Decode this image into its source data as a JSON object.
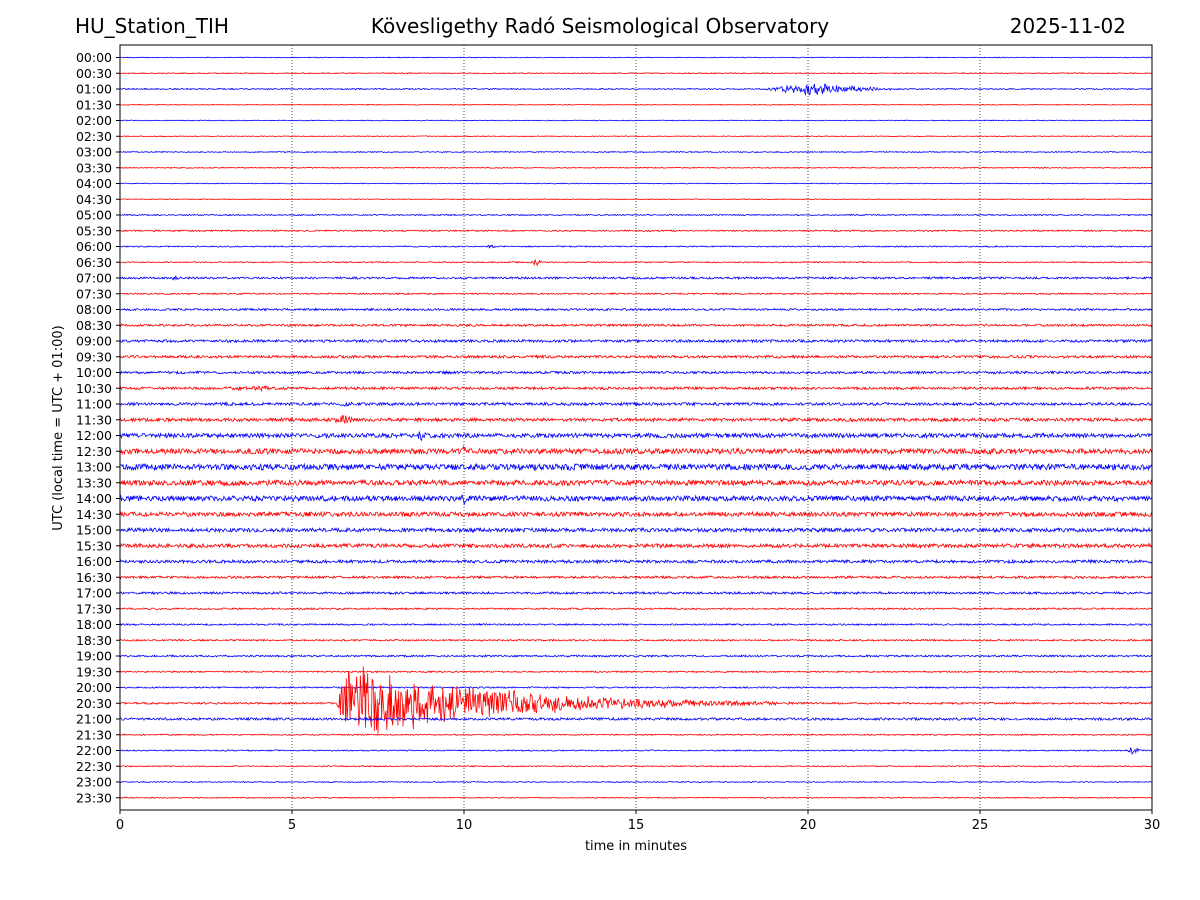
{
  "header": {
    "station": "HU_Station_TIH",
    "observatory": "Kövesligethy Radó Seismological Observatory",
    "date": "2025-11-02"
  },
  "chart_data": {
    "type": "line",
    "subtype": "helicorder",
    "title": "Kövesligethy Radó Seismological Observatory",
    "xlabel": "time in minutes",
    "ylabel": "UTC (local time = UTC + 01:00)",
    "xlim": [
      0,
      30
    ],
    "x_ticks": [
      "0",
      "5",
      "10",
      "15",
      "20",
      "25",
      "30"
    ],
    "x_grid": "dotted vertical at 5, 10, 15, 20, 25",
    "colors": {
      "even_rows": "#0000ff",
      "odd_rows": "#ff0000"
    },
    "row_labels": [
      "00:00",
      "00:30",
      "01:00",
      "01:30",
      "02:00",
      "02:30",
      "03:00",
      "03:30",
      "04:00",
      "04:30",
      "05:00",
      "05:30",
      "06:00",
      "06:30",
      "07:00",
      "07:30",
      "08:00",
      "08:30",
      "09:00",
      "09:30",
      "10:00",
      "10:30",
      "11:00",
      "11:30",
      "12:00",
      "12:30",
      "13:00",
      "13:30",
      "14:00",
      "14:30",
      "15:00",
      "15:30",
      "16:00",
      "16:30",
      "17:00",
      "17:30",
      "18:00",
      "18:30",
      "19:00",
      "19:30",
      "20:00",
      "20:30",
      "21:00",
      "21:30",
      "22:00",
      "22:30",
      "23:00",
      "23:30"
    ],
    "noise_amplitude": [
      0.4,
      0.5,
      0.6,
      0.4,
      0.4,
      0.4,
      0.5,
      0.5,
      0.4,
      0.4,
      0.6,
      0.7,
      0.6,
      0.6,
      1.0,
      0.7,
      1.0,
      1.1,
      1.3,
      1.3,
      1.2,
      1.3,
      1.4,
      1.6,
      2.2,
      2.6,
      3.0,
      2.6,
      2.6,
      2.2,
      1.9,
      1.9,
      1.5,
      1.2,
      1.1,
      0.8,
      0.8,
      0.8,
      0.9,
      0.7,
      0.7,
      0.9,
      1.2,
      0.6,
      0.6,
      0.6,
      0.5,
      0.5
    ],
    "events": [
      {
        "row": "01:00",
        "start_min": 18.5,
        "end_min": 24.0,
        "peak_min": 20.3,
        "amplitude": 8
      },
      {
        "row": "06:00",
        "start_min": 10.6,
        "end_min": 11.1,
        "peak_min": 10.8,
        "amplitude": 3
      },
      {
        "row": "06:30",
        "start_min": 11.9,
        "end_min": 12.6,
        "peak_min": 12.1,
        "amplitude": 5
      },
      {
        "row": "07:00",
        "start_min": 1.3,
        "end_min": 2.2,
        "peak_min": 1.6,
        "amplitude": 3
      },
      {
        "row": "08:30",
        "start_min": 0.7,
        "end_min": 1.2,
        "peak_min": 0.8,
        "amplitude": 3
      },
      {
        "row": "10:30",
        "start_min": 1.7,
        "end_min": 5.0,
        "peak_min": 4.3,
        "amplitude": 3
      },
      {
        "row": "11:00",
        "start_min": 6.0,
        "end_min": 7.0,
        "peak_min": 6.7,
        "amplitude": 4
      },
      {
        "row": "11:30",
        "start_min": 6.0,
        "end_min": 7.0,
        "peak_min": 6.6,
        "amplitude": 7
      },
      {
        "row": "12:00",
        "start_min": 8.5,
        "end_min": 9.5,
        "peak_min": 8.7,
        "amplitude": 7
      },
      {
        "row": "12:30",
        "start_min": 9.6,
        "end_min": 10.3,
        "peak_min": 10.0,
        "amplitude": 6
      },
      {
        "row": "13:00",
        "start_min": 19.5,
        "end_min": 22.0,
        "peak_min": 19.9,
        "amplitude": 5
      },
      {
        "row": "14:00",
        "start_min": 9.8,
        "end_min": 10.5,
        "peak_min": 10.0,
        "amplitude": 9
      },
      {
        "row": "20:30",
        "start_min": 6.3,
        "end_min": 20.0,
        "peak_min": 6.6,
        "amplitude": 46
      },
      {
        "row": "21:00",
        "start_min": 16.8,
        "end_min": 17.1,
        "peak_min": 16.9,
        "amplitude": 3
      },
      {
        "row": "22:00",
        "start_min": 29.2,
        "end_min": 30.0,
        "peak_min": 29.4,
        "amplitude": 6
      }
    ]
  }
}
